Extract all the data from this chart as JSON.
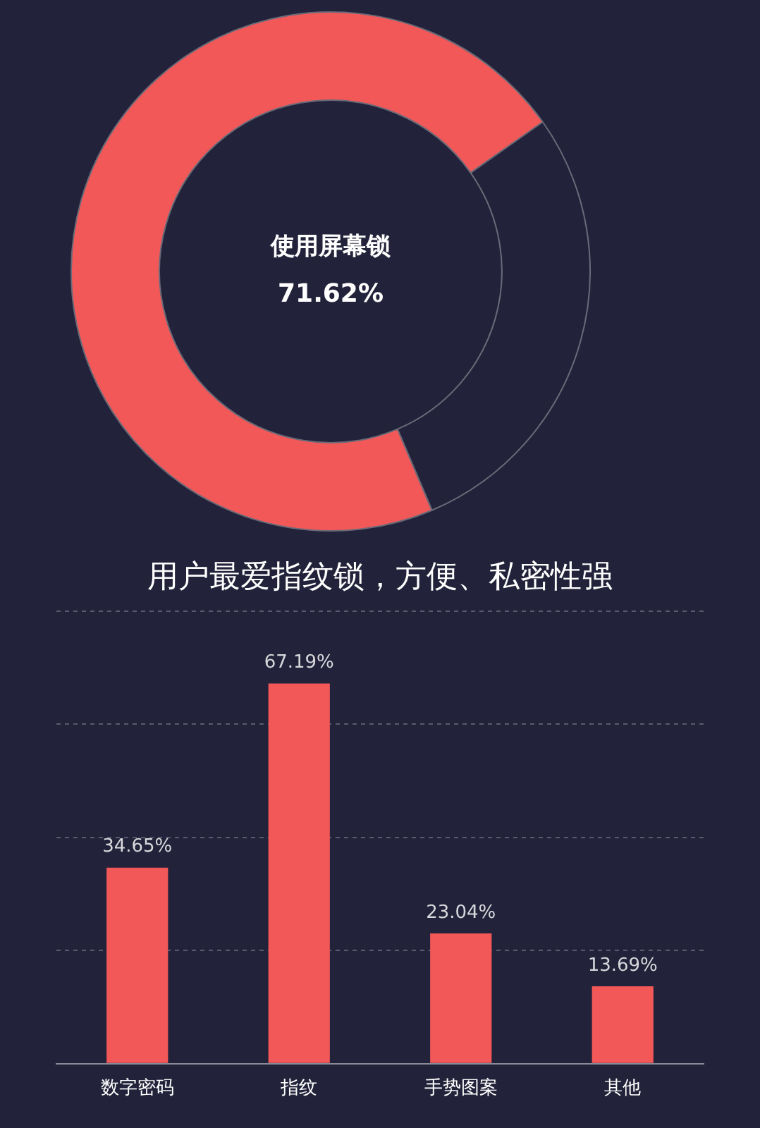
{
  "chart_data": [
    {
      "type": "donut",
      "categories": [
        "使用屏幕锁",
        null
      ],
      "values": [
        71.62,
        28.38
      ],
      "colors": [
        "#f25858",
        "#22223a"
      ],
      "value_labels": [
        "71.62%",
        null
      ],
      "legend": false
    },
    {
      "type": "bar",
      "title": "用户最爱指纹锁，方便、私密性强",
      "categories": [
        "数字密码",
        "指纹",
        "手势图案",
        "其他"
      ],
      "values": [
        34.65,
        67.19,
        23.04,
        13.69
      ],
      "color": "#f25858",
      "value_labels": [
        "34.65%",
        "67.19%",
        "23.04%",
        "13.69%"
      ],
      "ylim": [
        0,
        80
      ],
      "yticks": [
        {
          "value": 0,
          "label": null
        },
        {
          "value": 20,
          "label": null
        },
        {
          "value": 40,
          "label": null
        },
        {
          "value": 60,
          "label": null
        },
        {
          "value": 80,
          "label": null
        }
      ],
      "grid": "y",
      "tick_labels": "x",
      "legend": false
    }
  ]
}
